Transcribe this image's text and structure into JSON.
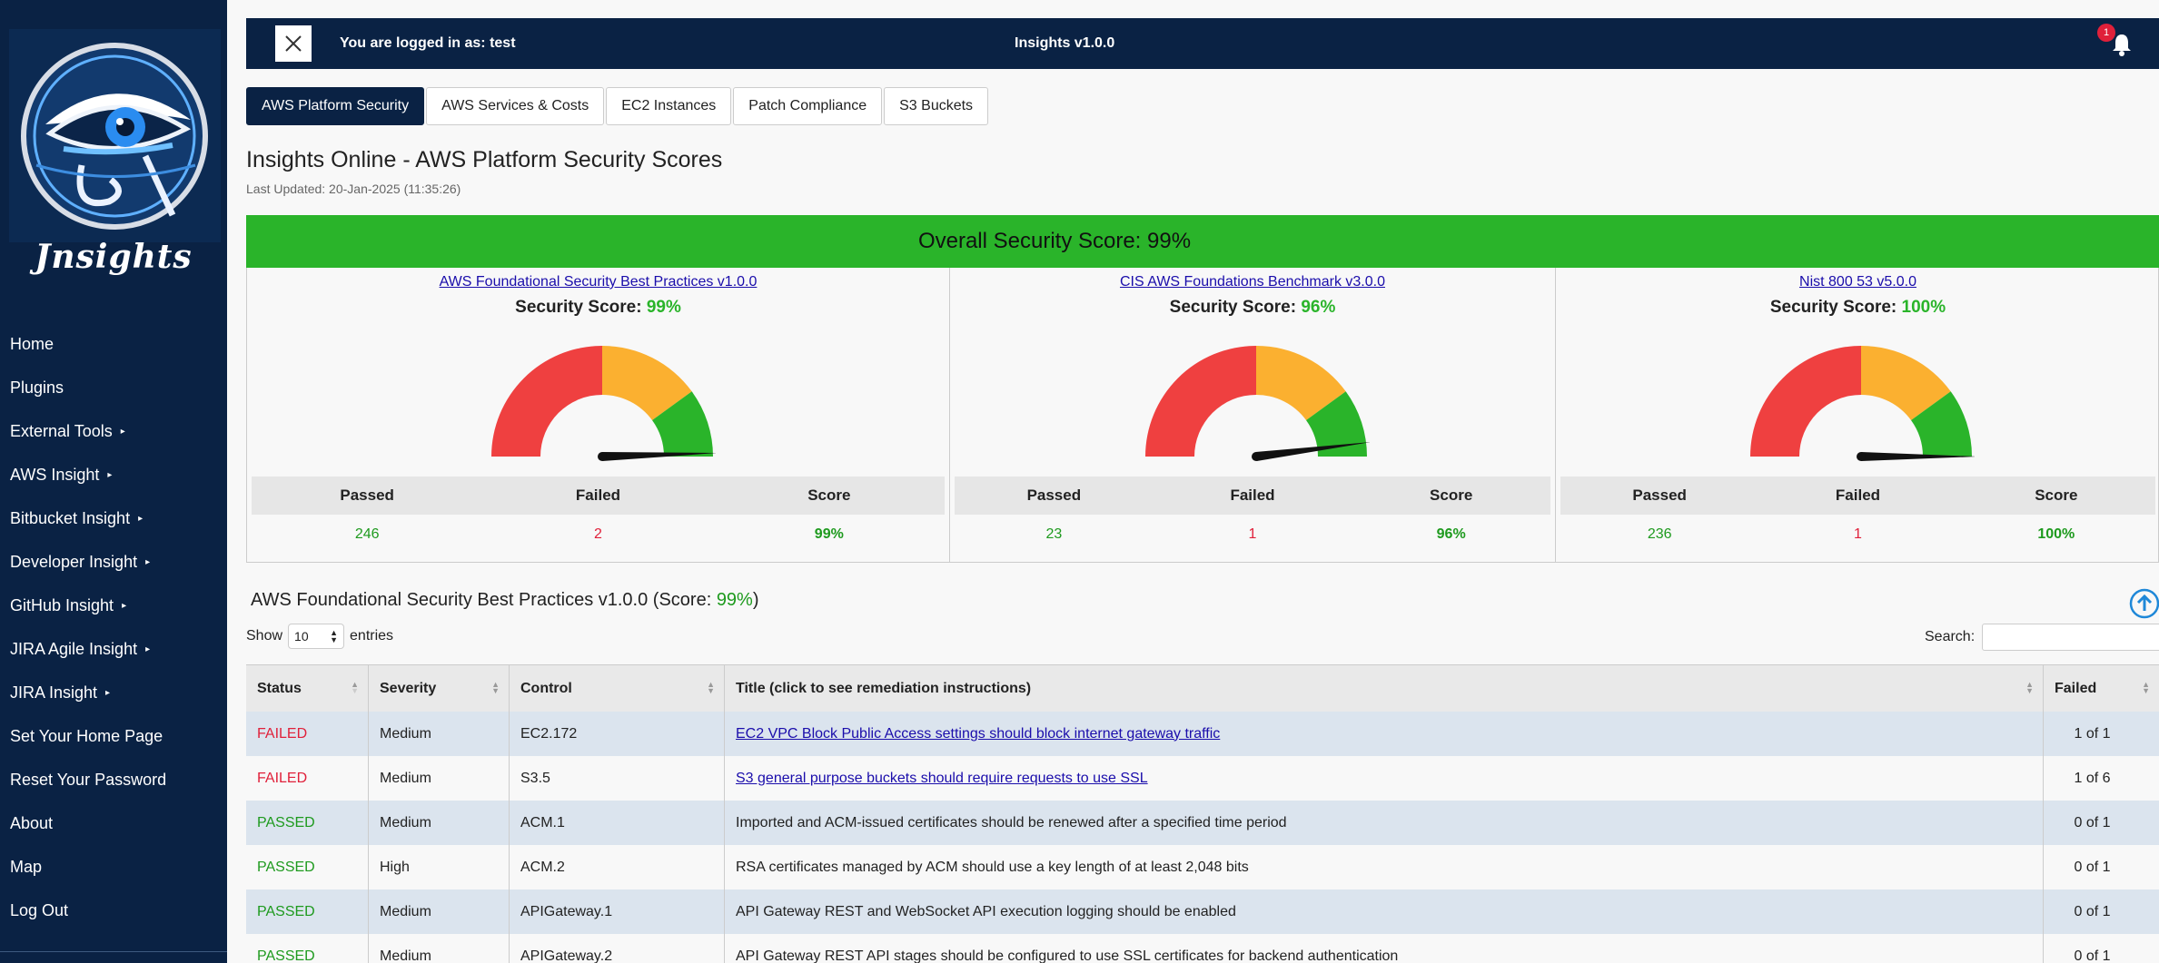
{
  "sidebar": {
    "logo_text": "Jnsights",
    "items": [
      {
        "label": "Home",
        "caret": false
      },
      {
        "label": "Plugins",
        "caret": false
      },
      {
        "label": "External Tools",
        "caret": true
      },
      {
        "label": "AWS Insight",
        "caret": true
      },
      {
        "label": "Bitbucket Insight",
        "caret": true
      },
      {
        "label": "Developer Insight",
        "caret": true
      },
      {
        "label": "GitHub Insight",
        "caret": true
      },
      {
        "label": "JIRA Agile Insight",
        "caret": true
      },
      {
        "label": "JIRA Insight",
        "caret": true
      },
      {
        "label": "Set Your Home Page",
        "caret": false
      },
      {
        "label": "Reset Your Password",
        "caret": false
      },
      {
        "label": "About",
        "caret": false
      },
      {
        "label": "Map",
        "caret": false
      },
      {
        "label": "Log Out",
        "caret": false
      }
    ]
  },
  "topbar": {
    "login_text": "You are logged in as: test",
    "app_title": "Insights v1.0.0",
    "notification_count": "1"
  },
  "tabs": [
    "AWS Platform Security",
    "AWS Services & Costs",
    "EC2 Instances",
    "Patch Compliance",
    "S3 Buckets"
  ],
  "page": {
    "title": "Insights Online - AWS Platform Security Scores",
    "last_updated": "Last Updated: 20-Jan-2025 (11:35:26)",
    "overall": "Overall Security Score: 99%"
  },
  "cards": [
    {
      "link": "AWS Foundational Security Best Practices v1.0.0",
      "score_label": "Security Score:",
      "score": "99%",
      "gauge_value": 99,
      "passed_label": "Passed",
      "failed_label": "Failed",
      "score_col_label": "Score",
      "passed": "246",
      "failed": "2",
      "score_pct": "99%"
    },
    {
      "link": "CIS AWS Foundations Benchmark v3.0.0",
      "score_label": "Security Score:",
      "score": "96%",
      "gauge_value": 96,
      "passed_label": "Passed",
      "failed_label": "Failed",
      "score_col_label": "Score",
      "passed": "23",
      "failed": "1",
      "score_pct": "96%"
    },
    {
      "link": "Nist 800 53 v5.0.0",
      "score_label": "Security Score:",
      "score": "100%",
      "gauge_value": 100,
      "passed_label": "Passed",
      "failed_label": "Failed",
      "score_col_label": "Score",
      "passed": "236",
      "failed": "1",
      "score_pct": "100%"
    }
  ],
  "section": {
    "title_prefix": "AWS Foundational Security Best Practices v1.0.0 (Score: ",
    "score": "99%",
    "title_suffix": ")"
  },
  "controls": {
    "show_label": "Show",
    "entries_value": "10",
    "entries_label": "entries",
    "search_label": "Search:"
  },
  "table": {
    "headers": [
      "Status",
      "Severity",
      "Control",
      "Title (click to see remediation instructions)",
      "Failed"
    ],
    "rows": [
      {
        "status": "FAILED",
        "severity": "Medium",
        "control": "EC2.172",
        "title": "EC2 VPC Block Public Access settings should block internet gateway traffic",
        "failed": "1 of 1"
      },
      {
        "status": "FAILED",
        "severity": "Medium",
        "control": "S3.5",
        "title": "S3 general purpose buckets should require requests to use SSL",
        "failed": "1 of 6"
      },
      {
        "status": "PASSED",
        "severity": "Medium",
        "control": "ACM.1",
        "title": "Imported and ACM-issued certificates should be renewed after a specified time period",
        "failed": "0 of 1"
      },
      {
        "status": "PASSED",
        "severity": "High",
        "control": "ACM.2",
        "title": "RSA certificates managed by ACM should use a key length of at least 2,048 bits",
        "failed": "0 of 1"
      },
      {
        "status": "PASSED",
        "severity": "Medium",
        "control": "APIGateway.1",
        "title": "API Gateway REST and WebSocket API execution logging should be enabled",
        "failed": "0 of 1"
      },
      {
        "status": "PASSED",
        "severity": "Medium",
        "control": "APIGateway.2",
        "title": "API Gateway REST API stages should be configured to use SSL certificates for backend authentication",
        "failed": "0 of 1"
      }
    ]
  },
  "colors": {
    "navy": "#0a2244",
    "green": "#2ab42a",
    "red": "#e0203a",
    "gauge_red": "#ef4040",
    "gauge_orange": "#fbb030",
    "gauge_green": "#2ab42a"
  }
}
